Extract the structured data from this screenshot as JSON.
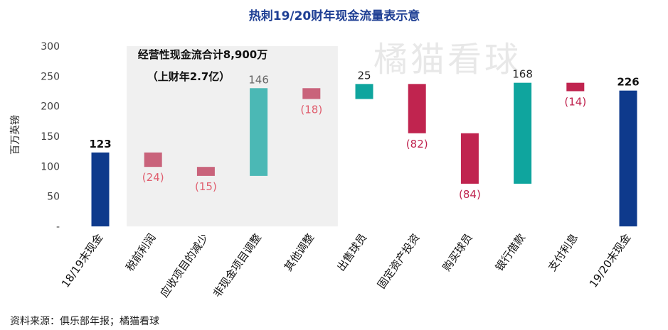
{
  "chart_data": {
    "type": "bar",
    "subtype": "waterfall",
    "title": "热刺19/20财年现金流量表示意",
    "ylabel": "百万英镑",
    "ylim": [
      0,
      300
    ],
    "yticks": [
      {
        "value": 0,
        "label": "-"
      },
      {
        "value": 50,
        "label": "50"
      },
      {
        "value": 100,
        "label": "100"
      },
      {
        "value": 150,
        "label": "150"
      },
      {
        "value": 200,
        "label": "200"
      },
      {
        "value": 250,
        "label": "250"
      },
      {
        "value": 300,
        "label": "300"
      }
    ],
    "bars": [
      {
        "category": "18/19末现金",
        "start": 0,
        "end": 123,
        "label": "123",
        "kind": "total",
        "color": "#0e3a8c"
      },
      {
        "category": "税前利润",
        "start": 123,
        "end": 99,
        "label": "(24)",
        "kind": "op-neg",
        "color": "#c9637b"
      },
      {
        "category": "应收项目的减少",
        "start": 99,
        "end": 84,
        "label": "(15)",
        "kind": "op-neg",
        "color": "#c9637b"
      },
      {
        "category": "非现金项目调整",
        "start": 84,
        "end": 230,
        "label": "146",
        "kind": "op-pos",
        "color": "#4bb8b5"
      },
      {
        "category": "其他调整",
        "start": 230,
        "end": 212,
        "label": "(18)",
        "kind": "op-neg",
        "color": "#c9637b"
      },
      {
        "category": "出售球员",
        "start": 212,
        "end": 237,
        "label": "25",
        "kind": "pos",
        "color": "#0fa59e"
      },
      {
        "category": "固定资产投资",
        "start": 237,
        "end": 155,
        "label": "(82)",
        "kind": "neg",
        "color": "#c0244f"
      },
      {
        "category": "购买球员",
        "start": 155,
        "end": 71,
        "label": "(84)",
        "kind": "neg",
        "color": "#c0244f"
      },
      {
        "category": "银行借款",
        "start": 71,
        "end": 239,
        "label": "168",
        "kind": "pos",
        "color": "#0fa59e"
      },
      {
        "category": "支付利息",
        "start": 239,
        "end": 225,
        "label": "(14)",
        "kind": "neg",
        "color": "#c0244f"
      },
      {
        "category": "19/20末现金",
        "start": 0,
        "end": 226,
        "label": "226",
        "kind": "total",
        "color": "#0e3a8c"
      }
    ],
    "shaded_region": {
      "from_category": "税前利润",
      "to_category": "其他调整",
      "color": "#f0f0f0"
    },
    "annotation_lines": [
      "经营性现金流合计8,900万",
      "（上财年2.7亿）"
    ],
    "label_colors": {
      "total": "#111111",
      "pos": "#222222",
      "op-pos": "#666666",
      "neg": "#c0244f",
      "op-neg": "#e06070"
    },
    "grid": false,
    "legend": "none"
  },
  "watermark": "橘猫看球",
  "source_text": "资料来源：俱乐部年报；橘猫看球"
}
